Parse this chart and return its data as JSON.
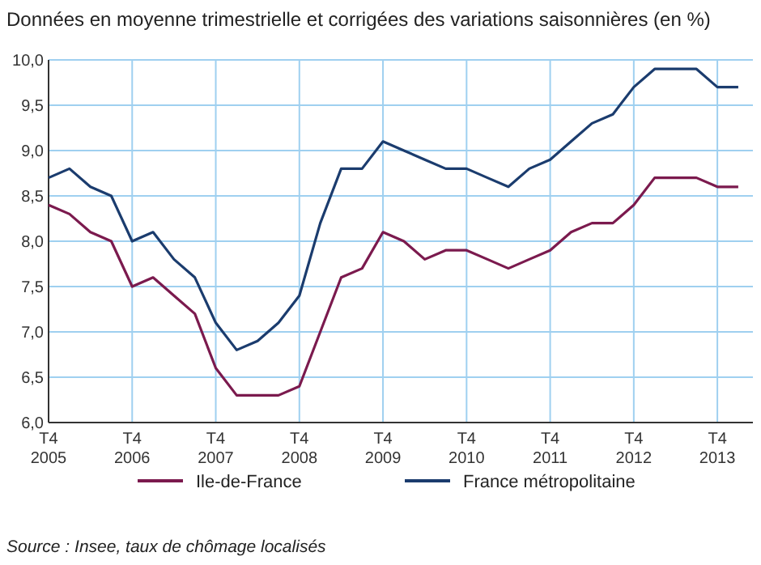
{
  "chart_data": {
    "type": "line",
    "title": "Données en moyenne trimestrielle et corrigées des variations saisonnières (en %)",
    "categories": [
      "T4\n2005",
      null,
      null,
      null,
      "T4\n2006",
      null,
      null,
      null,
      "T4\n2007",
      null,
      null,
      null,
      "T4\n2008",
      null,
      null,
      null,
      "T4\n2009",
      null,
      null,
      null,
      "T4\n2010",
      null,
      null,
      null,
      "T4\n2011",
      null,
      null,
      null,
      "T4\n2012",
      null,
      null,
      null,
      "T4\n2013",
      null
    ],
    "series": [
      {
        "name": "Ile-de-France",
        "color": "#7b1a4e",
        "values": [
          8.4,
          8.3,
          8.1,
          8.0,
          7.5,
          7.6,
          7.4,
          7.2,
          6.6,
          6.3,
          6.3,
          6.3,
          6.4,
          7.0,
          7.6,
          7.7,
          8.1,
          8.0,
          7.8,
          7.9,
          7.9,
          7.8,
          7.7,
          7.8,
          7.9,
          8.1,
          8.2,
          8.2,
          8.4,
          8.7,
          8.7,
          8.7,
          8.6,
          8.6
        ]
      },
      {
        "name": "France métropolitaine",
        "color": "#1b3c6e",
        "values": [
          8.7,
          8.8,
          8.6,
          8.5,
          8.0,
          8.1,
          7.8,
          7.6,
          7.1,
          6.8,
          6.9,
          7.1,
          7.4,
          8.2,
          8.8,
          8.8,
          9.1,
          9.0,
          8.9,
          8.8,
          8.8,
          8.7,
          8.6,
          8.8,
          8.9,
          9.1,
          9.3,
          9.4,
          9.7,
          9.9,
          9.9,
          9.9,
          9.7,
          9.7
        ]
      }
    ],
    "ylim": [
      6,
      10
    ],
    "yticks": [
      {
        "value": 6,
        "label": "6,0"
      },
      {
        "value": 6.5,
        "label": "6,5"
      },
      {
        "value": 7,
        "label": "7,0"
      },
      {
        "value": 7.5,
        "label": "7,5"
      },
      {
        "value": 8,
        "label": "8,0"
      },
      {
        "value": 8.5,
        "label": "8,5"
      },
      {
        "value": 9,
        "label": "9,0"
      },
      {
        "value": 9.5,
        "label": "9,5"
      },
      {
        "value": 10,
        "label": "10,0"
      }
    ],
    "grid": true,
    "legend": "bottom",
    "marker": "none",
    "line_style": "solid",
    "annotations": [
      "Source : Insee, taux de chômage localisés"
    ]
  }
}
